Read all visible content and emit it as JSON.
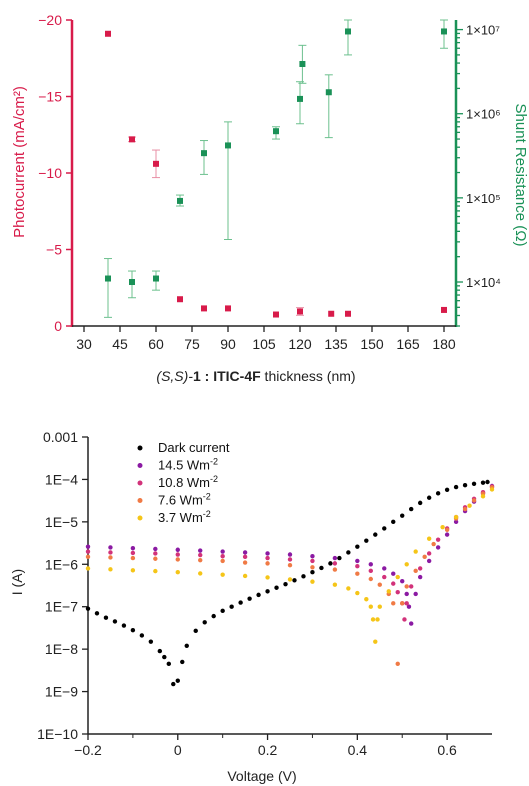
{
  "chart_data": [
    {
      "type": "scatter",
      "xlabel_parts": [
        "(S,S)-",
        "1",
        " : ",
        "ITIC-4F",
        " thickness (nm)"
      ],
      "ylabel_left": "Photocurrent (mA/cm²)",
      "ylabel_right": "Shunt Resistance (Ω)",
      "xlim": [
        25,
        185
      ],
      "x_ticks": [
        30,
        45,
        60,
        75,
        90,
        105,
        120,
        135,
        150,
        165,
        180
      ],
      "ylim_left": [
        0,
        -20
      ],
      "y_ticks_left": [
        0,
        -5,
        -10,
        -15,
        -20
      ],
      "y_tick_labels_left": [
        "0",
        "−5",
        "−10",
        "−15",
        "−20"
      ],
      "y_right_scale": "log",
      "ylim_right": [
        3000,
        13000000
      ],
      "y_ticks_right": [
        10000,
        100000,
        1000000,
        10000000
      ],
      "y_tick_labels_right": [
        "1×10⁴",
        "1×10⁵",
        "1×10⁶",
        "1×10⁷"
      ],
      "colors": {
        "photocurrent": "#d81b4a",
        "shunt": "#1a9157"
      },
      "series": [
        {
          "axis": "left",
          "color": "#d81b4a",
          "points": [
            {
              "x": 40,
              "y": -19.1,
              "err": 0
            },
            {
              "x": 50,
              "y": -12.2,
              "err": 0.15
            },
            {
              "x": 60,
              "y": -10.6,
              "err": 0.9
            },
            {
              "x": 70,
              "y": -1.75,
              "err": 0
            },
            {
              "x": 80,
              "y": -1.15,
              "err": 0
            },
            {
              "x": 90,
              "y": -1.15,
              "err": 0
            },
            {
              "x": 110,
              "y": -0.75,
              "err": 0
            },
            {
              "x": 120,
              "y": -0.95,
              "err": 0.25
            },
            {
              "x": 133,
              "y": -0.8,
              "err": 0
            },
            {
              "x": 140,
              "y": -0.8,
              "err": 0
            },
            {
              "x": 180,
              "y": -1.05,
              "err": 0
            }
          ]
        },
        {
          "axis": "right",
          "color": "#1a9157",
          "points": [
            {
              "x": 40,
              "y": 11000,
              "lo": 3800,
              "hi": 19000
            },
            {
              "x": 50,
              "y": 10000,
              "lo": 6500,
              "hi": 13500
            },
            {
              "x": 60,
              "y": 11000,
              "lo": 8000,
              "hi": 13500
            },
            {
              "x": 70,
              "y": 92000,
              "lo": 80000,
              "hi": 108000
            },
            {
              "x": 80,
              "y": 340000,
              "lo": 190000,
              "hi": 480000
            },
            {
              "x": 90,
              "y": 420000,
              "lo": 32000,
              "hi": 800000
            },
            {
              "x": 110,
              "y": 620000,
              "lo": 500000,
              "hi": 700000
            },
            {
              "x": 120,
              "y": 1500000,
              "lo": 760000,
              "hi": 2400000
            },
            {
              "x": 121,
              "y": 3900000,
              "lo": 2300000,
              "hi": 6500000
            },
            {
              "x": 132,
              "y": 1800000,
              "lo": 520000,
              "hi": 2900000
            },
            {
              "x": 140,
              "y": 9500000,
              "lo": 5000000,
              "hi": 13000000
            },
            {
              "x": 180,
              "y": 9500000,
              "lo": 6000000,
              "hi": 13000000
            }
          ]
        }
      ]
    },
    {
      "type": "scatter",
      "xlabel": "Voltage (V)",
      "ylabel": "I (A)",
      "xlim": [
        -0.2,
        0.7
      ],
      "x_ticks": [
        -0.2,
        0,
        0.2,
        0.4,
        0.6
      ],
      "x_tick_labels": [
        "−0.2",
        "0",
        "0.2",
        "0.4",
        "0.6"
      ],
      "y_scale": "log",
      "ylim": [
        1e-10,
        0.001
      ],
      "y_ticks": [
        1e-10,
        1e-09,
        1e-08,
        1e-07,
        1e-06,
        1e-05,
        0.0001,
        0.001
      ],
      "y_tick_labels": [
        "1E−10",
        "1E−9",
        "1E−8",
        "1E−7",
        "1E−6",
        "1E−5",
        "1E−4",
        "0.001"
      ],
      "legend_position": "top-left",
      "legend": [
        {
          "text": "Dark current",
          "sup": "",
          "color": "#000000"
        },
        {
          "text": "14.5 Wm",
          "sup": "-2",
          "color": "#8b1aa3"
        },
        {
          "text": "10.8 Wm",
          "sup": "-2",
          "color": "#d2327a"
        },
        {
          "text": "7.6 Wm",
          "sup": "-2",
          "color": "#f07a45"
        },
        {
          "text": "3.7 Wm",
          "sup": "-2",
          "color": "#f5c518"
        }
      ],
      "series": [
        {
          "name": "Dark current",
          "color": "#000000",
          "points": [
            [
              -0.2,
              9e-08
            ],
            [
              -0.18,
              7e-08
            ],
            [
              -0.16,
              5.5e-08
            ],
            [
              -0.14,
              4.5e-08
            ],
            [
              -0.12,
              3.6e-08
            ],
            [
              -0.1,
              2.8e-08
            ],
            [
              -0.08,
              2.1e-08
            ],
            [
              -0.06,
              1.5e-08
            ],
            [
              -0.04,
              9e-09
            ],
            [
              -0.03,
              6.5e-09
            ],
            [
              -0.02,
              4.5e-09
            ],
            [
              -0.01,
              1.5e-09
            ],
            [
              0.0,
              1.8e-09
            ],
            [
              0.01,
              5e-09
            ],
            [
              0.02,
              1.2e-08
            ],
            [
              0.04,
              2.7e-08
            ],
            [
              0.06,
              4.3e-08
            ],
            [
              0.08,
              6e-08
            ],
            [
              0.1,
              8e-08
            ],
            [
              0.12,
              1e-07
            ],
            [
              0.14,
              1.25e-07
            ],
            [
              0.16,
              1.55e-07
            ],
            [
              0.18,
              1.9e-07
            ],
            [
              0.2,
              2.3e-07
            ],
            [
              0.22,
              2.8e-07
            ],
            [
              0.24,
              3.4e-07
            ],
            [
              0.26,
              4.2e-07
            ],
            [
              0.28,
              5.2e-07
            ],
            [
              0.3,
              6.5e-07
            ],
            [
              0.32,
              8.2e-07
            ],
            [
              0.34,
              1.05e-06
            ],
            [
              0.36,
              1.4e-06
            ],
            [
              0.38,
              1.9e-06
            ],
            [
              0.4,
              2.6e-06
            ],
            [
              0.42,
              3.6e-06
            ],
            [
              0.44,
              5e-06
            ],
            [
              0.46,
              7e-06
            ],
            [
              0.48,
              1e-05
            ],
            [
              0.5,
              1.4e-05
            ],
            [
              0.52,
              2e-05
            ],
            [
              0.54,
              2.8e-05
            ],
            [
              0.56,
              3.7e-05
            ],
            [
              0.58,
              4.7e-05
            ],
            [
              0.6,
              5.7e-05
            ],
            [
              0.62,
              6.6e-05
            ],
            [
              0.64,
              7.3e-05
            ],
            [
              0.66,
              7.9e-05
            ],
            [
              0.68,
              8.4e-05
            ],
            [
              0.69,
              8.7e-05
            ]
          ]
        },
        {
          "name": "14.5 Wm",
          "color": "#8b1aa3",
          "points": [
            [
              -0.2,
              2.6e-06
            ],
            [
              -0.15,
              2.5e-06
            ],
            [
              -0.1,
              2.4e-06
            ],
            [
              -0.05,
              2.3e-06
            ],
            [
              0.0,
              2.2e-06
            ],
            [
              0.05,
              2.1e-06
            ],
            [
              0.1,
              2e-06
            ],
            [
              0.15,
              1.9e-06
            ],
            [
              0.2,
              1.8e-06
            ],
            [
              0.25,
              1.7e-06
            ],
            [
              0.3,
              1.55e-06
            ],
            [
              0.35,
              1.4e-06
            ],
            [
              0.4,
              1.2e-06
            ],
            [
              0.43,
              1e-06
            ],
            [
              0.46,
              8e-07
            ],
            [
              0.48,
              6e-07
            ],
            [
              0.5,
              4e-07
            ],
            [
              0.51,
              2e-07
            ],
            [
              0.515,
              1e-07
            ],
            [
              0.52,
              4e-08
            ],
            [
              0.53,
              2e-07
            ],
            [
              0.54,
              5e-07
            ],
            [
              0.56,
              1.2e-06
            ],
            [
              0.58,
              2.5e-06
            ],
            [
              0.6,
              5e-06
            ],
            [
              0.62,
              1e-05
            ],
            [
              0.64,
              1.8e-05
            ],
            [
              0.66,
              3e-05
            ],
            [
              0.68,
              4.8e-05
            ],
            [
              0.7,
              7e-05
            ]
          ]
        },
        {
          "name": "10.8 Wm",
          "color": "#d2327a",
          "points": [
            [
              -0.2,
              2e-06
            ],
            [
              -0.15,
              1.9e-06
            ],
            [
              -0.1,
              1.85e-06
            ],
            [
              -0.05,
              1.8e-06
            ],
            [
              0.0,
              1.7e-06
            ],
            [
              0.05,
              1.65e-06
            ],
            [
              0.1,
              1.55e-06
            ],
            [
              0.15,
              1.5e-06
            ],
            [
              0.2,
              1.4e-06
            ],
            [
              0.25,
              1.3e-06
            ],
            [
              0.3,
              1.2e-06
            ],
            [
              0.35,
              1.05e-06
            ],
            [
              0.4,
              9e-07
            ],
            [
              0.43,
              7e-07
            ],
            [
              0.46,
              5e-07
            ],
            [
              0.48,
              3.5e-07
            ],
            [
              0.49,
              2.2e-07
            ],
            [
              0.5,
              1.2e-07
            ],
            [
              0.505,
              5e-08
            ],
            [
              0.51,
              1.2e-07
            ],
            [
              0.52,
              3e-07
            ],
            [
              0.54,
              8e-07
            ],
            [
              0.56,
              1.8e-06
            ],
            [
              0.58,
              3.8e-06
            ],
            [
              0.6,
              7e-06
            ],
            [
              0.62,
              1.3e-05
            ],
            [
              0.64,
              2.2e-05
            ],
            [
              0.66,
              3.5e-05
            ],
            [
              0.68,
              5e-05
            ],
            [
              0.7,
              6.8e-05
            ]
          ]
        },
        {
          "name": "7.6 Wm",
          "color": "#f07a45",
          "points": [
            [
              -0.2,
              1.5e-06
            ],
            [
              -0.15,
              1.45e-06
            ],
            [
              -0.1,
              1.4e-06
            ],
            [
              -0.05,
              1.35e-06
            ],
            [
              0.0,
              1.3e-06
            ],
            [
              0.05,
              1.25e-06
            ],
            [
              0.1,
              1.2e-06
            ],
            [
              0.15,
              1.1e-06
            ],
            [
              0.2,
              1.05e-06
            ],
            [
              0.25,
              9.5e-07
            ],
            [
              0.3,
              8.5e-07
            ],
            [
              0.35,
              7.5e-07
            ],
            [
              0.4,
              6e-07
            ],
            [
              0.43,
              4.5e-07
            ],
            [
              0.45,
              3.3e-07
            ],
            [
              0.47,
              2e-07
            ],
            [
              0.48,
              1.2e-07
            ],
            [
              0.49,
              4.5e-09
            ],
            [
              0.5,
              1.2e-07
            ],
            [
              0.51,
              3e-07
            ],
            [
              0.53,
              7e-07
            ],
            [
              0.55,
              1.5e-06
            ],
            [
              0.57,
              3e-06
            ],
            [
              0.6,
              6.5e-06
            ],
            [
              0.62,
              1.2e-05
            ],
            [
              0.64,
              2e-05
            ],
            [
              0.66,
              3.2e-05
            ],
            [
              0.68,
              4.6e-05
            ],
            [
              0.7,
              6.5e-05
            ]
          ]
        },
        {
          "name": "3.7 Wm",
          "color": "#f5c518",
          "points": [
            [
              -0.2,
              8e-07
            ],
            [
              -0.15,
              7.6e-07
            ],
            [
              -0.1,
              7.2e-07
            ],
            [
              -0.05,
              6.9e-07
            ],
            [
              0.0,
              6.5e-07
            ],
            [
              0.05,
              6.1e-07
            ],
            [
              0.1,
              5.7e-07
            ],
            [
              0.15,
              5.3e-07
            ],
            [
              0.2,
              4.9e-07
            ],
            [
              0.25,
              4.4e-07
            ],
            [
              0.3,
              3.9e-07
            ],
            [
              0.35,
              3.3e-07
            ],
            [
              0.38,
              2.7e-07
            ],
            [
              0.4,
              2.1e-07
            ],
            [
              0.42,
              1.5e-07
            ],
            [
              0.43,
              1e-07
            ],
            [
              0.435,
              5e-08
            ],
            [
              0.44,
              1.5e-08
            ],
            [
              0.445,
              5e-08
            ],
            [
              0.45,
              1e-07
            ],
            [
              0.47,
              2.3e-07
            ],
            [
              0.49,
              5e-07
            ],
            [
              0.51,
              1e-06
            ],
            [
              0.53,
              2e-06
            ],
            [
              0.56,
              4e-06
            ],
            [
              0.59,
              7.5e-06
            ],
            [
              0.62,
              1.3e-05
            ],
            [
              0.65,
              2.4e-05
            ],
            [
              0.68,
              4e-05
            ],
            [
              0.7,
              5.8e-05
            ]
          ]
        }
      ]
    }
  ]
}
